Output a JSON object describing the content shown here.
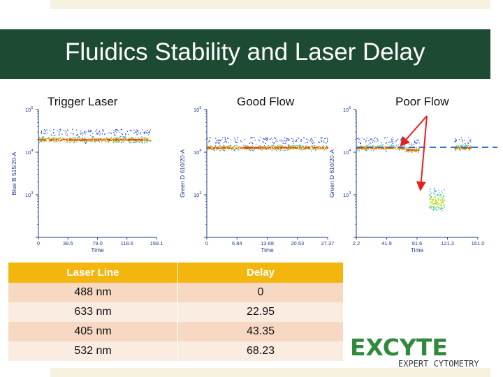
{
  "slide": {
    "title": "Fluidics Stability and Laser Delay"
  },
  "colors": {
    "title_bar": "#1d4a32",
    "table_header": "#f2b60f",
    "row_odd": "#f7d9c3",
    "row_even": "#fbece2",
    "axis_text": "#1f3b8a",
    "arrow": "#e8201a",
    "dashed_line": "#2e6fd0"
  },
  "chart_data": [
    {
      "type": "scatter",
      "title": "Trigger Laser",
      "xlabel": "Time",
      "ylabel": "Blue B 515/20-A",
      "y_scale": "log",
      "xlim": [
        0,
        158.1
      ],
      "ylim": [
        100,
        100000
      ],
      "x_ticks": [
        "0",
        "39.5",
        "79.0",
        "118.6",
        "158.1"
      ],
      "y_ticks": [
        "10^3",
        "10^4",
        "10^5"
      ],
      "series": [
        {
          "x_range": [
            0,
            150
          ],
          "y_center": 20000
        }
      ]
    },
    {
      "type": "scatter",
      "title": "Good Flow",
      "xlabel": "Time",
      "ylabel": "Green D 610/20-A",
      "y_scale": "log",
      "xlim": [
        0,
        27.37
      ],
      "ylim": [
        100,
        100000
      ],
      "x_ticks": [
        "0",
        "6.84",
        "13.68",
        "20.53",
        "27.37"
      ],
      "y_ticks": [
        "10^3",
        "10^4",
        "10^5"
      ],
      "series": [
        {
          "x_range": [
            0,
            27.37
          ],
          "y_center": 13000
        }
      ]
    },
    {
      "type": "scatter",
      "title": "Poor Flow",
      "xlabel": "Time",
      "ylabel": "Green D 610/20-A",
      "y_scale": "log",
      "xlim": [
        2.2,
        161.0
      ],
      "ylim": [
        100,
        100000
      ],
      "x_ticks": [
        "2.2",
        "41.9",
        "81.6",
        "121.3",
        "161.0"
      ],
      "y_ticks": [
        "10^3",
        "10^4",
        "10^5"
      ],
      "series": [
        {
          "x_range": [
            2.2,
            65
          ],
          "y_center": 13000
        },
        {
          "x_range": [
            65,
            84
          ],
          "y_center": 11500
        },
        {
          "x_range": [
            130,
            152
          ],
          "y_center": 13000
        },
        {
          "x_range": [
            97,
            117
          ],
          "y_center": 700
        }
      ],
      "reference_line_y": 13000
    }
  ],
  "table": {
    "headers": [
      "Laser Line",
      "Delay"
    ],
    "rows": [
      [
        "488 nm",
        "0"
      ],
      [
        "633 nm",
        "22.95"
      ],
      [
        "405 nm",
        "43.35"
      ],
      [
        "532 nm",
        "68.23"
      ]
    ]
  },
  "logo": {
    "name": "EXCYTE",
    "tagline": "EXPERT CYTOMETRY"
  }
}
